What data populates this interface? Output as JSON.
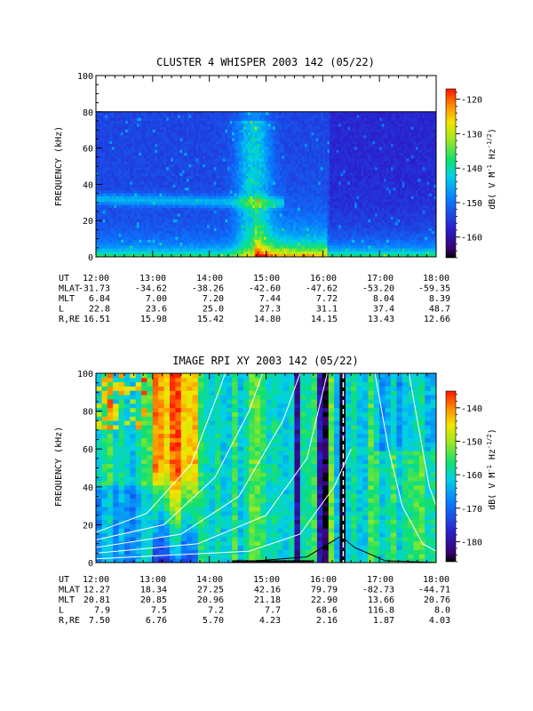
{
  "chart_data": [
    {
      "type": "heatmap",
      "title": "CLUSTER 4 WHISPER 2003 142 (05/22)",
      "ylabel": "FREQUENCY (kHz)",
      "ylim": [
        0,
        100
      ],
      "y_ticks": [
        "0",
        "20",
        "40",
        "60",
        "80",
        "100"
      ],
      "x_ticks": [
        "12:00",
        "13:00",
        "14:00",
        "15:00",
        "16:00",
        "17:00",
        "18:00"
      ],
      "data_ceiling_khz": 80,
      "colorbar": {
        "label": "dB( V M",
        "label_sup1": "-1",
        "label_mid": " Hz",
        "label_sup2": "-1/2",
        "label_end": ")",
        "ticks": [
          "-120",
          "-130",
          "-140",
          "-150",
          "-160"
        ],
        "tick_values": [
          -120,
          -130,
          -140,
          -150,
          -160
        ],
        "range": [
          -166,
          -117
        ]
      },
      "ephemeris": {
        "labels": [
          "UT",
          "MLAT",
          "MLT",
          "L",
          "R,RE"
        ],
        "rows": [
          [
            "12:00",
            "13:00",
            "14:00",
            "15:00",
            "16:00",
            "17:00",
            "18:00"
          ],
          [
            "-31.73",
            "-34.62",
            "-38.26",
            "-42.60",
            "-47.62",
            "-53.20",
            "-59.35"
          ],
          [
            "6.84",
            "7.00",
            "7.20",
            "7.44",
            "7.72",
            "8.04",
            "8.39"
          ],
          [
            "22.8",
            "23.6",
            "25.0",
            "27.3",
            "31.1",
            "37.4",
            "48.7"
          ],
          [
            "16.51",
            "15.98",
            "15.42",
            "14.80",
            "14.15",
            "13.43",
            "12.66"
          ]
        ]
      }
    },
    {
      "type": "heatmap",
      "title": "IMAGE RPI XY 2003 142 (05/22)",
      "ylabel": "FREQUENCY (kHz)",
      "ylim": [
        0,
        100
      ],
      "y_ticks": [
        "0",
        "20",
        "40",
        "60",
        "80",
        "100"
      ],
      "x_ticks": [
        "12:00",
        "13:00",
        "14:00",
        "15:00",
        "16:00",
        "17:00",
        "18:00"
      ],
      "colorbar": {
        "label": "dB( V M",
        "label_sup1": "-1",
        "label_mid": " Hz",
        "label_sup2": "-1/2",
        "label_end": ")",
        "ticks": [
          "-140",
          "-150",
          "-160",
          "-170",
          "-180"
        ],
        "tick_values": [
          -140,
          -150,
          -160,
          -170,
          -180
        ],
        "range": [
          -186,
          -135
        ]
      },
      "ephemeris": {
        "labels": [
          "UT",
          "MLAT",
          "MLT",
          "L",
          "R,RE"
        ],
        "rows": [
          [
            "12:00",
            "13:00",
            "14:00",
            "15:00",
            "16:00",
            "17:00",
            "18:00"
          ],
          [
            "12.27",
            "18.34",
            "27.25",
            "42.16",
            "79.79",
            "-82.73",
            "-44.71"
          ],
          [
            "20.81",
            "20.85",
            "20.96",
            "21.18",
            "22.90",
            "13.66",
            "20.76"
          ],
          [
            "7.9",
            "7.5",
            "7.2",
            "7.7",
            "68.6",
            "116.8",
            "8.0"
          ],
          [
            "7.50",
            "6.76",
            "5.70",
            "4.23",
            "2.16",
            "1.87",
            "4.03"
          ]
        ]
      }
    }
  ]
}
